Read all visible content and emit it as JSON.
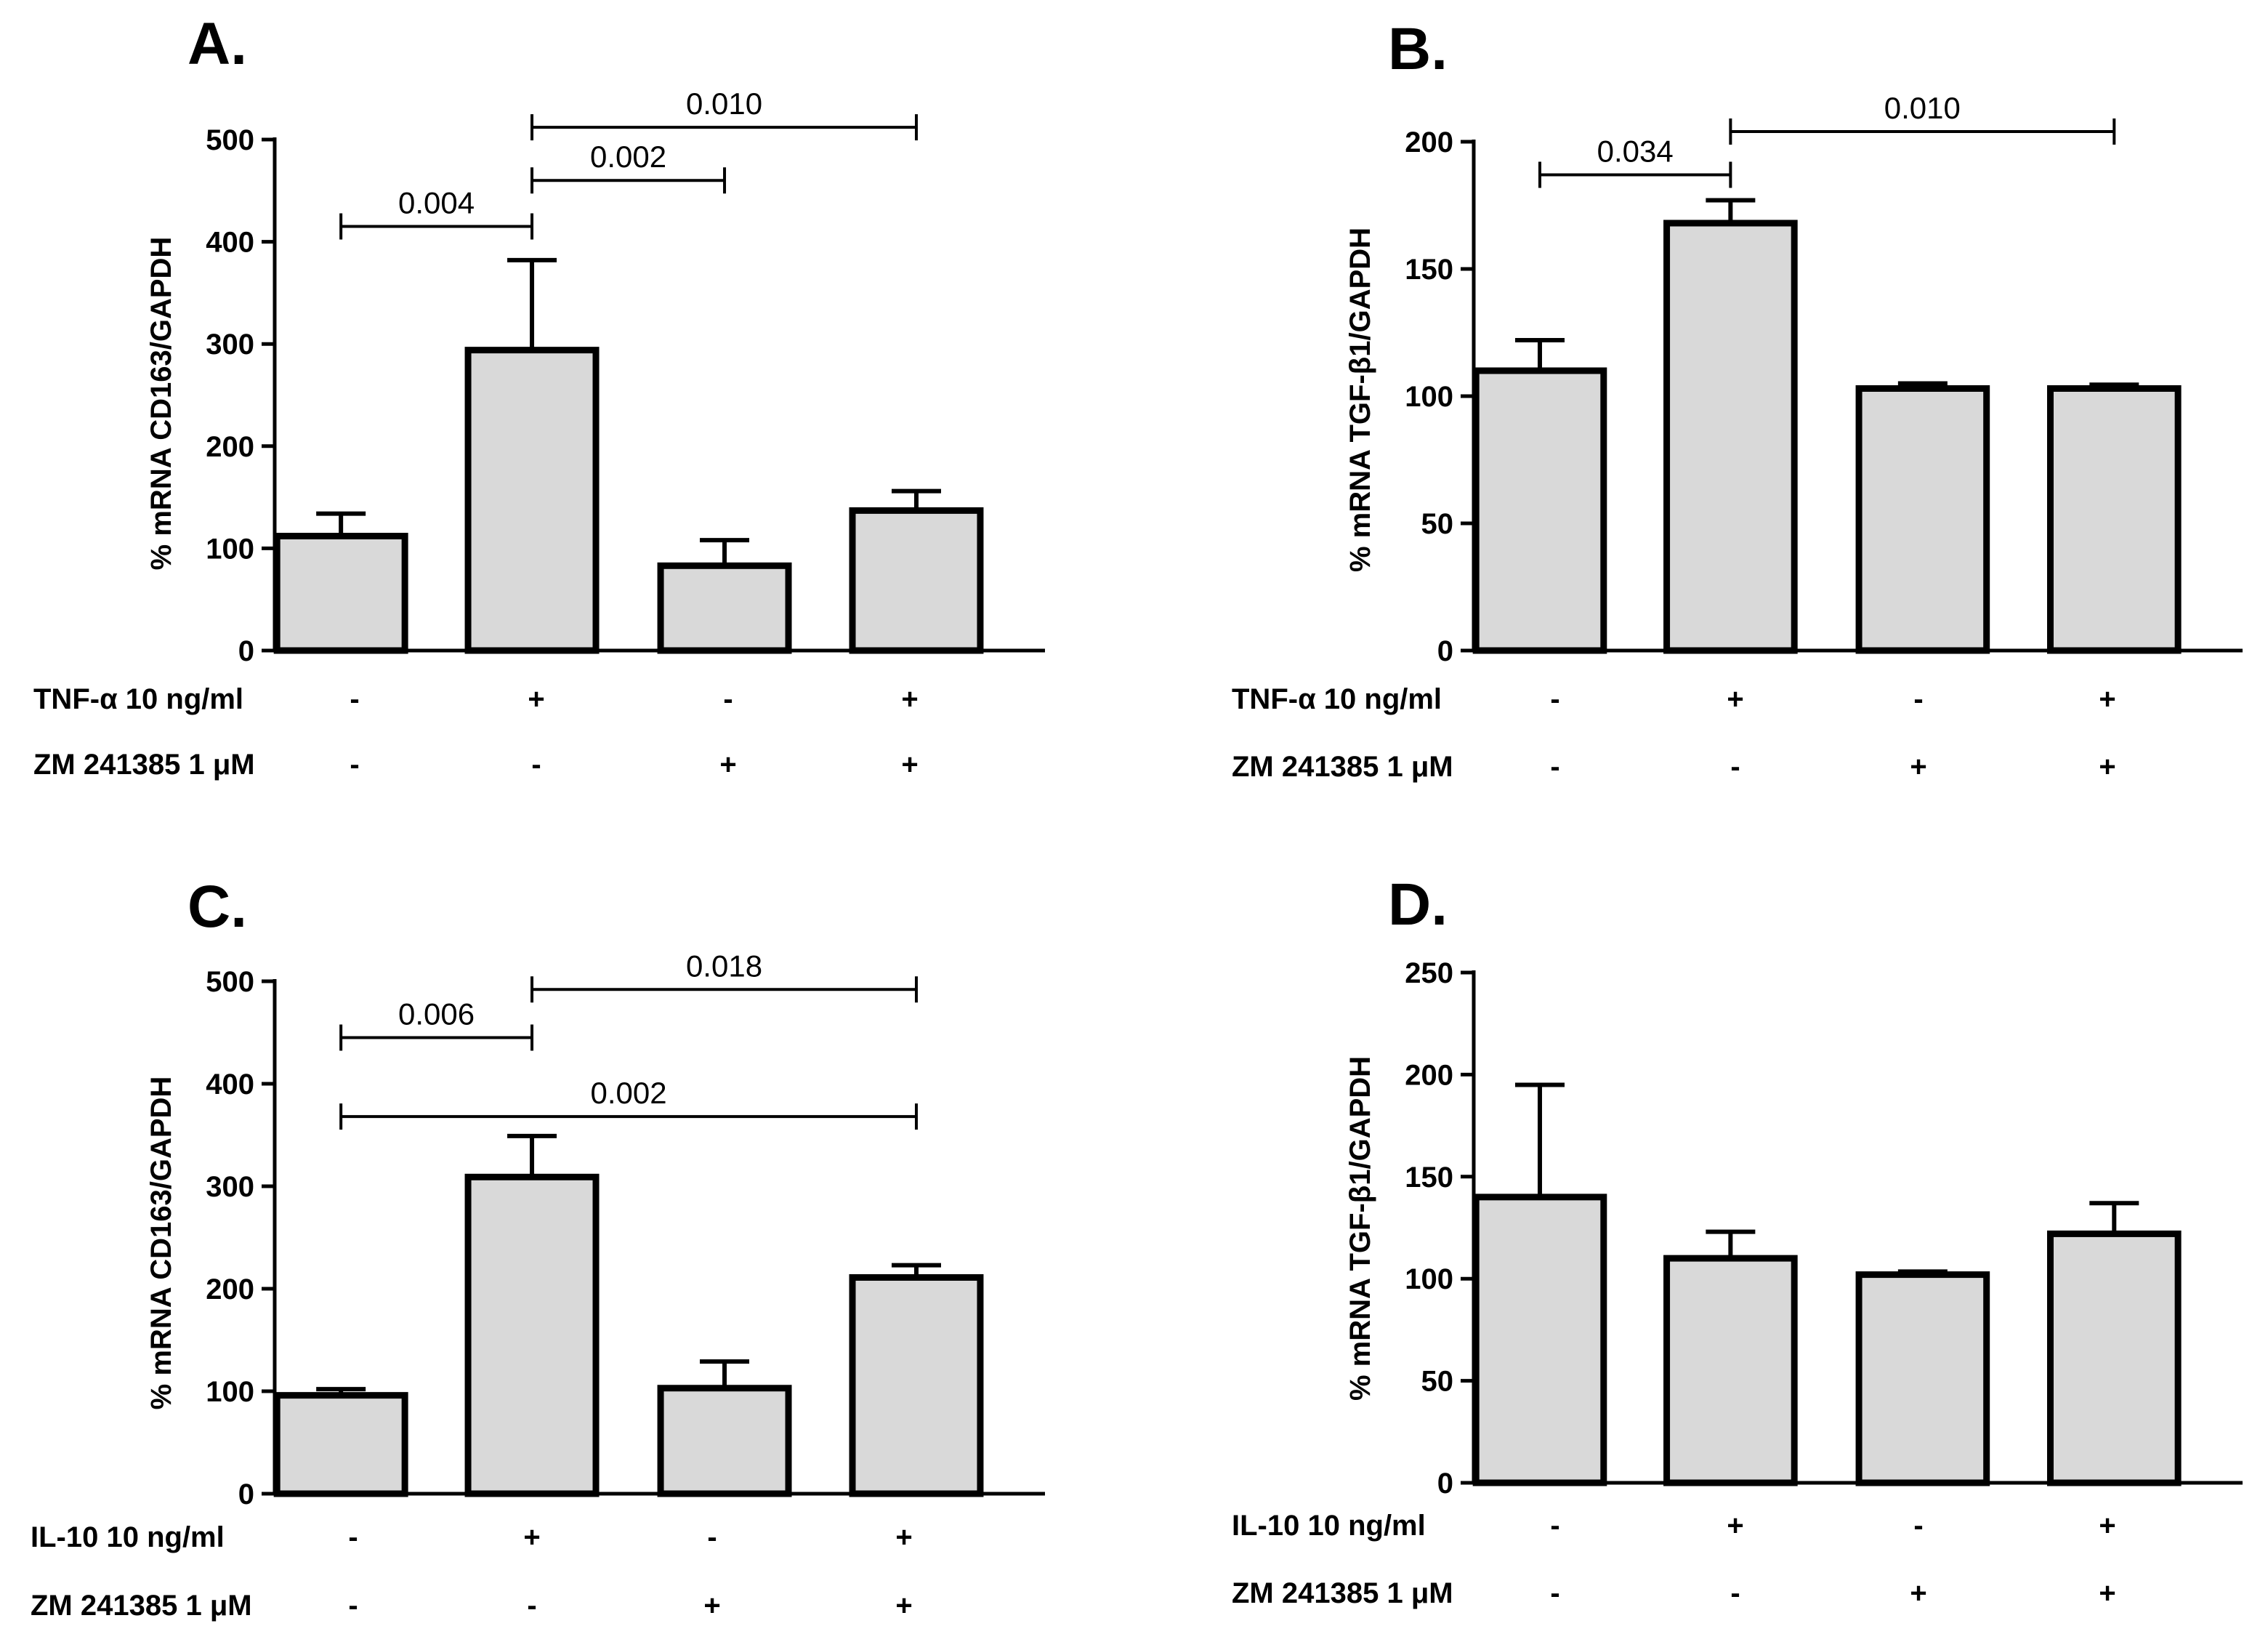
{
  "chart_data": [
    {
      "type": "bar",
      "panel": "A.",
      "ylabel": "% mRNA CD163/GAPDH",
      "ylim": [
        0,
        500
      ],
      "yticks": [
        "0",
        "100",
        "200",
        "300",
        "400",
        "500"
      ],
      "values": [
        112,
        294,
        83,
        137
      ],
      "errors": [
        22,
        88,
        25,
        19
      ],
      "conditions": [
        {
          "label": "TNF-α 10 ng/ml",
          "signs": [
            "-",
            "+",
            "-",
            "+"
          ]
        },
        {
          "label": "ZM 241385 1 μM",
          "signs": [
            "-",
            "-",
            "+",
            "+"
          ]
        }
      ],
      "brackets": [
        {
          "from": 0,
          "to": 1,
          "y": 415,
          "label": "0.004"
        },
        {
          "from": 1,
          "to": 2,
          "y": 460,
          "label": "0.002"
        },
        {
          "from": 1,
          "to": 3,
          "y": 512,
          "label": "0.010"
        }
      ]
    },
    {
      "type": "bar",
      "panel": "B.",
      "ylabel": "% mRNA TGF-β1/GAPDH",
      "ylim": [
        0,
        200
      ],
      "yticks": [
        "0",
        "50",
        "100",
        "150",
        "200"
      ],
      "values": [
        110,
        168,
        103,
        103
      ],
      "errors": [
        12,
        9,
        2,
        1.5
      ],
      "conditions": [
        {
          "label": "TNF-α 10 ng/ml",
          "signs": [
            "-",
            "+",
            "-",
            "+"
          ]
        },
        {
          "label": "ZM 241385 1 μM",
          "signs": [
            "-",
            "-",
            "+",
            "+"
          ]
        }
      ],
      "brackets": [
        {
          "from": 0,
          "to": 1,
          "y": 187,
          "label": "0.034"
        },
        {
          "from": 1,
          "to": 3,
          "y": 204,
          "label": "0.010"
        }
      ]
    },
    {
      "type": "bar",
      "panel": "C.",
      "ylabel": "% mRNA CD163/GAPDH",
      "ylim": [
        0,
        500
      ],
      "yticks": [
        "0",
        "100",
        "200",
        "300",
        "400",
        "500"
      ],
      "values": [
        96,
        309,
        103,
        211
      ],
      "errors": [
        6,
        40,
        26,
        12
      ],
      "conditions": [
        {
          "label": "IL-10 10 ng/ml",
          "signs": [
            "-",
            "+",
            "-",
            "+"
          ]
        },
        {
          "label": "ZM 241385 1 μM",
          "signs": [
            "-",
            "-",
            "+",
            "+"
          ]
        }
      ],
      "brackets": [
        {
          "from": 0,
          "to": 1,
          "y": 445,
          "label": "0.006"
        },
        {
          "from": 1,
          "to": 3,
          "y": 492,
          "label": "0.018"
        },
        {
          "from": 0,
          "to": 3,
          "y": 368,
          "label": "0.002"
        }
      ]
    },
    {
      "type": "bar",
      "panel": "D.",
      "ylabel": "% mRNA TGF-β1/GAPDH",
      "ylim": [
        0,
        250
      ],
      "yticks": [
        "0",
        "50",
        "100",
        "150",
        "200",
        "250"
      ],
      "values": [
        140,
        110,
        102,
        122
      ],
      "errors": [
        55,
        13,
        1.5,
        15
      ],
      "conditions": [
        {
          "label": "IL-10 10 ng/ml",
          "signs": [
            "-",
            "+",
            "-",
            "+"
          ]
        },
        {
          "label": "ZM 241385 1 μM",
          "signs": [
            "-",
            "-",
            "+",
            "+"
          ]
        }
      ],
      "brackets": []
    }
  ]
}
